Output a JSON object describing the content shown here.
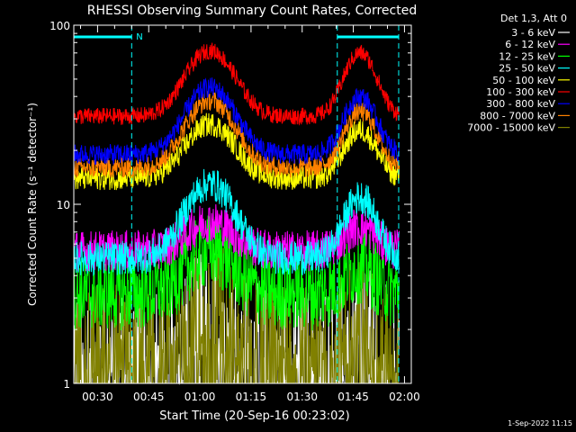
{
  "footer_timestamp": "1-Sep-2022 11:15",
  "chart_data": {
    "type": "line",
    "title": "RHESSI Observing Summary Count Rates, Corrected",
    "xlabel": "Start Time (20-Sep-16 00:23:02)",
    "ylabel": "Corrected Count Rate (s⁻¹ detector⁻¹)",
    "y_scale": "log",
    "ylim": [
      1,
      100
    ],
    "yticks": [
      "1",
      "10",
      "100"
    ],
    "xlim_minutes": [
      23.03,
      122
    ],
    "xticks": [
      {
        "label": "00:30",
        "minute": 30
      },
      {
        "label": "00:45",
        "minute": 45
      },
      {
        "label": "01:00",
        "minute": 60
      },
      {
        "label": "01:15",
        "minute": 75
      },
      {
        "label": "01:30",
        "minute": 90
      },
      {
        "label": "01:45",
        "minute": 105
      },
      {
        "label": "02:00",
        "minute": 120
      }
    ],
    "legend_header": "Det 1,3, Att 0",
    "legend_placement": "right",
    "attenuator_flag_label": "N",
    "attenuator_bars_minutes": [
      [
        23.03,
        40.0
      ],
      [
        100.3,
        118.3
      ]
    ],
    "eclipse_markers_minutes": [
      40.0,
      100.3,
      118.3
    ],
    "series": [
      {
        "name": "3 - 6 keV",
        "color": "#ffffff",
        "base": 1.6,
        "peak1": 2.6,
        "peak2": 2.1,
        "noise": 0.35,
        "floor": 1.0
      },
      {
        "name": "6 - 12 keV",
        "color": "#ff00ff",
        "base": 5.5,
        "peak1": 8.0,
        "peak2": 7.5,
        "noise": 0.12
      },
      {
        "name": "12 - 25 keV",
        "color": "#00ff00",
        "base": 3.2,
        "peak1": 5.5,
        "peak2": 4.5,
        "noise": 0.22
      },
      {
        "name": "25 - 50 keV",
        "color": "#00ffff",
        "base": 5.0,
        "peak1": 13.0,
        "peak2": 11.0,
        "noise": 0.1
      },
      {
        "name": "50 - 100 keV",
        "color": "#ffff00",
        "base": 14.0,
        "peak1": 28.0,
        "peak2": 26.0,
        "noise": 0.07
      },
      {
        "name": "100 - 300 keV",
        "color": "#ff0000",
        "base": 31.0,
        "peak1": 72.0,
        "peak2": 70.0,
        "noise": 0.05
      },
      {
        "name": "300 - 800 keV",
        "color": "#0000ff",
        "base": 19.0,
        "peak1": 45.0,
        "peak2": 40.0,
        "noise": 0.06
      },
      {
        "name": "800 - 7000 keV",
        "color": "#ff8000",
        "base": 16.0,
        "peak1": 38.0,
        "peak2": 33.0,
        "noise": 0.06
      },
      {
        "name": "7000 - 15000 keV",
        "color": "#808000",
        "base": 1.7,
        "peak1": 3.0,
        "peak2": 2.4,
        "noise": 0.35,
        "floor": 1.0
      }
    ],
    "peaks_minutes": {
      "peak1": 63.0,
      "peak2": 107.0
    }
  }
}
